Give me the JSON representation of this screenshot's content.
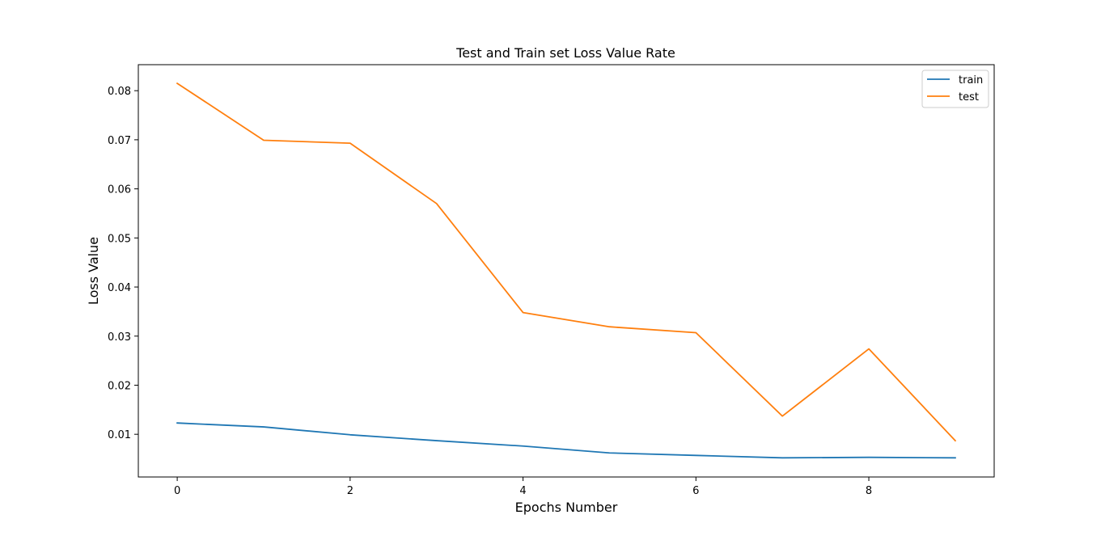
{
  "chart_data": {
    "type": "line",
    "title": "Test and Train set Loss Value Rate",
    "xlabel": "Epochs Number",
    "ylabel": "Loss Value",
    "x": [
      0,
      1,
      2,
      3,
      4,
      5,
      6,
      7,
      8,
      9
    ],
    "xlim": [
      -0.45,
      9.45
    ],
    "ylim": [
      0.0013,
      0.0853
    ],
    "xticks": [
      0,
      2,
      4,
      6,
      8
    ],
    "yticks": [
      0.01,
      0.02,
      0.03,
      0.04,
      0.05,
      0.06,
      0.07,
      0.08
    ],
    "grid": false,
    "legend_position": "top-right",
    "series": [
      {
        "name": "train",
        "color": "#1f77b4",
        "values": [
          0.0123,
          0.0115,
          0.0099,
          0.0087,
          0.0076,
          0.0062,
          0.0057,
          0.0052,
          0.0053,
          0.0052
        ]
      },
      {
        "name": "test",
        "color": "#ff7f0e",
        "values": [
          0.0815,
          0.0699,
          0.0693,
          0.057,
          0.0348,
          0.0319,
          0.0307,
          0.0137,
          0.0274,
          0.0087
        ]
      }
    ]
  }
}
